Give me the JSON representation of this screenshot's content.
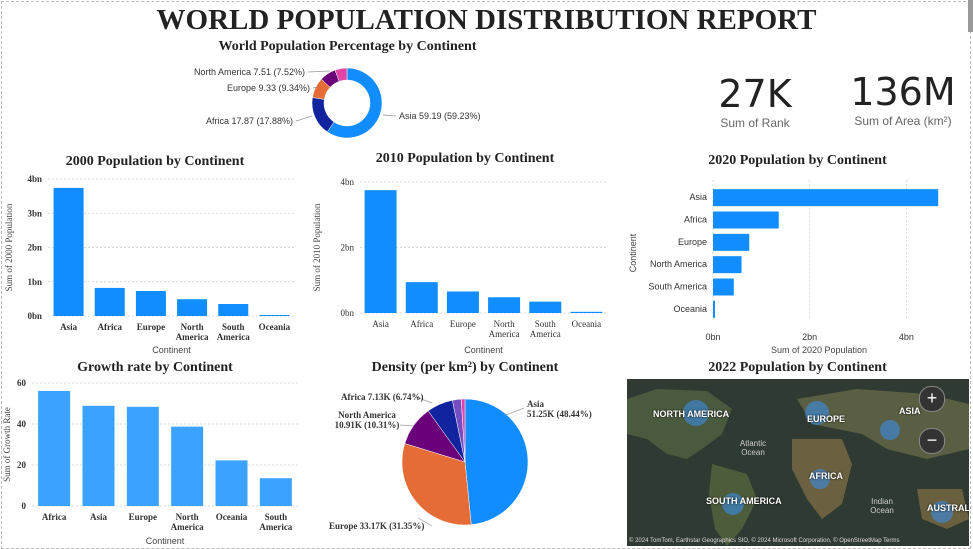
{
  "report_title": "WORLD POPULATION DISTRIBUTION REPORT",
  "kpis": [
    {
      "value": "27K",
      "label": "Sum of Rank"
    },
    {
      "value": "136M",
      "label": "Sum of Area (km²)"
    }
  ],
  "map": {
    "title": "2022 Population by Continent",
    "labels": [
      "NORTH AMERICA",
      "EUROPE",
      "ASIA",
      "AFRICA",
      "SOUTH AMERICA",
      "AUSTRALIA"
    ],
    "oceans": [
      "Atlantic Ocean",
      "Indian Ocean"
    ],
    "attribution": "© 2024 TomTom, Earthstar Geographics SIO, © 2024 Microsoft Corporation, © OpenStreetMap  Terms",
    "zoom_in": "+",
    "zoom_out": "−"
  },
  "colors": {
    "bar": "#118DFF",
    "bar_light": "#3BA3FF",
    "asia": "#118DFF",
    "africa": "#12239E",
    "europe": "#E66C37",
    "north_america": "#6B007B",
    "other": "#E044A7"
  },
  "chart_data": [
    {
      "type": "pie",
      "subtype": "donut",
      "title": "World Population Percentage by Continent",
      "slices": [
        {
          "label": "Asia",
          "value": 59.19,
          "text": "Asia 59.19 (59.23%)"
        },
        {
          "label": "Africa",
          "value": 17.87,
          "text": "Africa 17.87 (17.88%)"
        },
        {
          "label": "Europe",
          "value": 9.33,
          "text": "Europe 9.33 (9.34%)"
        },
        {
          "label": "North America",
          "value": 7.51,
          "text": "North America 7.51 (7.52%)"
        },
        {
          "label": "",
          "value": 5.5,
          "text": ""
        }
      ]
    },
    {
      "type": "bar",
      "title": "2000 Population by Continent",
      "xlabel": "Continent",
      "ylabel": "Sum of 2000 Population",
      "categories": [
        "Asia",
        "Africa",
        "Europe",
        "North America",
        "South America",
        "Oceania"
      ],
      "values": [
        3.74,
        0.82,
        0.73,
        0.49,
        0.35,
        0.03
      ],
      "ylim": [
        0,
        4
      ],
      "yticks": [
        "0bn",
        "1bn",
        "2bn",
        "3bn",
        "4bn"
      ]
    },
    {
      "type": "bar",
      "title": "2010 Population by Continent",
      "xlabel": "Continent",
      "ylabel": "Sum of 2010 Population",
      "categories": [
        "Asia",
        "Africa",
        "Europe",
        "North America",
        "South America",
        "Oceania"
      ],
      "values": [
        4.22,
        1.06,
        0.74,
        0.54,
        0.39,
        0.04
      ],
      "ylim": [
        0,
        4.5
      ],
      "yticks": [
        "0bn",
        "2bn",
        "4bn"
      ]
    },
    {
      "type": "bar",
      "orientation": "horizontal",
      "title": "2020 Population by Continent",
      "xlabel": "Sum of 2020 Population",
      "ylabel": "Continent",
      "categories": [
        "Asia",
        "Africa",
        "Europe",
        "North America",
        "South America",
        "Oceania"
      ],
      "values": [
        4.66,
        1.36,
        0.75,
        0.59,
        0.43,
        0.04
      ],
      "xlim": [
        0,
        4.8
      ],
      "xticks": [
        "0bn",
        "2bn",
        "4bn"
      ]
    },
    {
      "type": "bar",
      "title": "Growth rate by Continent",
      "xlabel": "Continent",
      "ylabel": "Sum of Growth Rate",
      "categories": [
        "Africa",
        "Asia",
        "Europe",
        "North America",
        "Oceania",
        "South America"
      ],
      "values": [
        58,
        50.5,
        50,
        40,
        23,
        14
      ],
      "ylim": [
        0,
        62
      ],
      "yticks": [
        "0",
        "20",
        "40",
        "60"
      ]
    },
    {
      "type": "pie",
      "title": "Density (per km²) by Continent",
      "slices": [
        {
          "label": "Asia",
          "value": 51.25,
          "text": "Asia\n51.25K (48.44%)"
        },
        {
          "label": "Europe",
          "value": 33.17,
          "text": "Europe 33.17K (31.35%)"
        },
        {
          "label": "North America",
          "value": 10.91,
          "text": "North America\n10.91K (10.31%)"
        },
        {
          "label": "Africa",
          "value": 7.13,
          "text": "Africa 7.13K (6.74%)"
        },
        {
          "label": "",
          "value": 2.4,
          "text": ""
        },
        {
          "label": "",
          "value": 1.0,
          "text": ""
        }
      ]
    }
  ]
}
